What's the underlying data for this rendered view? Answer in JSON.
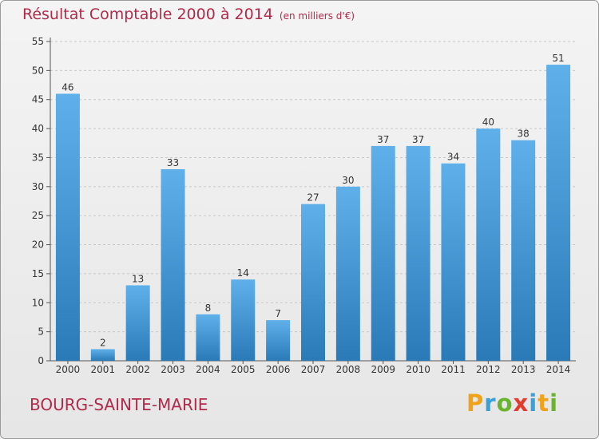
{
  "header": {
    "title": "Résultat Comptable 2000 à 2014",
    "subtitle": "(en milliers d'€)"
  },
  "footer": {
    "commune": "BOURG-SAINTE-MARIE",
    "logo_letters": [
      "P",
      "r",
      "o",
      "x",
      "i",
      "t",
      "i"
    ],
    "logo_colors": [
      "#f0a21b",
      "#3aa0d8",
      "#6ab42d",
      "#e33c2e",
      "#3aa0d8",
      "#f0a21b",
      "#6ab42d"
    ]
  },
  "colors": {
    "bar_light": "#5fb0ea",
    "bar_dark": "#2a7ab8",
    "title": "#b22a4a",
    "grid": "#c8c8c8"
  },
  "chart_data": {
    "type": "bar",
    "title": "Résultat Comptable 2000 à 2014",
    "subtitle": "(en milliers d'€)",
    "categories": [
      "2000",
      "2001",
      "2002",
      "2003",
      "2004",
      "2005",
      "2006",
      "2007",
      "2008",
      "2009",
      "2010",
      "2011",
      "2012",
      "2013",
      "2014"
    ],
    "values": [
      46,
      2,
      13,
      33,
      8,
      14,
      7,
      27,
      30,
      37,
      37,
      34,
      40,
      38,
      51
    ],
    "ylim": [
      0,
      55
    ],
    "yticks": [
      0,
      5,
      10,
      15,
      20,
      25,
      30,
      35,
      40,
      45,
      50,
      55
    ],
    "grid": true,
    "xlabel": "",
    "ylabel": ""
  }
}
